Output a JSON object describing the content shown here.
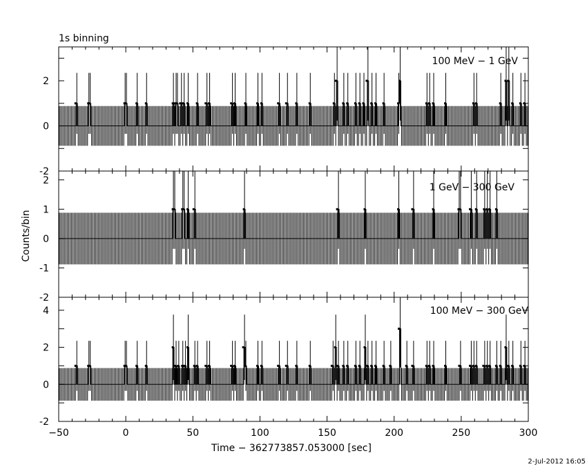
{
  "header": {
    "binning_label": "1s binning",
    "xlabel": "Time − 362773857.053000 [sec]",
    "ylabel": "Counts/bin",
    "date_stamp": "2-Jul-2012 16:05"
  },
  "chart_data": [
    {
      "type": "bar",
      "title": "100 MeV − 1 GeV",
      "xlim": [
        -50,
        300
      ],
      "ylim": [
        -2,
        3.5
      ],
      "yticks": [
        0,
        2
      ],
      "baseline_counts": 0,
      "baseline_error": 0.88,
      "events": [
        {
          "t": -37.5,
          "count": 1
        },
        {
          "t": -28,
          "count": 1
        },
        {
          "t": -27.5,
          "count": 1
        },
        {
          "t": -1,
          "count": 1
        },
        {
          "t": -0.5,
          "count": 1
        },
        {
          "t": 8,
          "count": 1
        },
        {
          "t": 15,
          "count": 1
        },
        {
          "t": 35,
          "count": 1
        },
        {
          "t": 36.5,
          "count": 1
        },
        {
          "t": 38,
          "count": 1
        },
        {
          "t": 40.5,
          "count": 1
        },
        {
          "t": 42.5,
          "count": 1
        },
        {
          "t": 46,
          "count": 1
        },
        {
          "t": 53,
          "count": 1
        },
        {
          "t": 59.5,
          "count": 1
        },
        {
          "t": 62,
          "count": 1
        },
        {
          "t": 78.5,
          "count": 1
        },
        {
          "t": 81,
          "count": 1
        },
        {
          "t": 89,
          "count": 1
        },
        {
          "t": 98,
          "count": 1
        },
        {
          "t": 101,
          "count": 1
        },
        {
          "t": 113.5,
          "count": 1
        },
        {
          "t": 119.5,
          "count": 1
        },
        {
          "t": 127,
          "count": 1
        },
        {
          "t": 137,
          "count": 1
        },
        {
          "t": 155,
          "count": 1
        },
        {
          "t": 156.5,
          "count": 2
        },
        {
          "t": 162,
          "count": 1
        },
        {
          "t": 165,
          "count": 1
        },
        {
          "t": 171,
          "count": 1
        },
        {
          "t": 174,
          "count": 1
        },
        {
          "t": 177,
          "count": 1
        },
        {
          "t": 179.5,
          "count": 2
        },
        {
          "t": 183,
          "count": 1
        },
        {
          "t": 186,
          "count": 1
        },
        {
          "t": 192,
          "count": 1
        },
        {
          "t": 203,
          "count": 1
        },
        {
          "t": 204,
          "count": 2
        },
        {
          "t": 224,
          "count": 1
        },
        {
          "t": 226,
          "count": 1
        },
        {
          "t": 229,
          "count": 1
        },
        {
          "t": 238,
          "count": 1
        },
        {
          "t": 259,
          "count": 1
        },
        {
          "t": 261,
          "count": 1
        },
        {
          "t": 279,
          "count": 1
        },
        {
          "t": 283,
          "count": 2
        },
        {
          "t": 285,
          "count": 2
        },
        {
          "t": 288,
          "count": 1
        },
        {
          "t": 294,
          "count": 1
        },
        {
          "t": 297,
          "count": 1
        }
      ]
    },
    {
      "type": "bar",
      "title": "1 GeV − 300 GeV",
      "xlim": [
        -50,
        300
      ],
      "ylim": [
        -2,
        2.3
      ],
      "yticks": [
        -1,
        0,
        1,
        2
      ],
      "baseline_counts": 0,
      "baseline_error": 0.88,
      "events": [
        {
          "t": 35,
          "count": 1
        },
        {
          "t": 36,
          "count": 1
        },
        {
          "t": 42,
          "count": 1
        },
        {
          "t": 43,
          "count": 1
        },
        {
          "t": 46,
          "count": 1
        },
        {
          "t": 50.5,
          "count": 1
        },
        {
          "t": 88,
          "count": 1
        },
        {
          "t": 157.5,
          "count": 1
        },
        {
          "t": 178,
          "count": 1
        },
        {
          "t": 203,
          "count": 1
        },
        {
          "t": 213.5,
          "count": 1
        },
        {
          "t": 229,
          "count": 1
        },
        {
          "t": 248,
          "count": 1
        },
        {
          "t": 249,
          "count": 1
        },
        {
          "t": 256.5,
          "count": 1
        },
        {
          "t": 261,
          "count": 1
        },
        {
          "t": 267,
          "count": 1
        },
        {
          "t": 269,
          "count": 1
        },
        {
          "t": 271,
          "count": 1
        },
        {
          "t": 276,
          "count": 1
        }
      ]
    },
    {
      "type": "bar",
      "title": "100 MeV − 300 GeV",
      "xlim": [
        -50,
        300
      ],
      "ylim": [
        -2,
        4.7
      ],
      "yticks": [
        0,
        2,
        4
      ],
      "baseline_counts": 0,
      "baseline_error": 0.88,
      "events": [
        {
          "t": -37.5,
          "count": 1
        },
        {
          "t": -28,
          "count": 1
        },
        {
          "t": -27,
          "count": 1
        },
        {
          "t": -1,
          "count": 1
        },
        {
          "t": 0,
          "count": 1
        },
        {
          "t": 8,
          "count": 1
        },
        {
          "t": 15,
          "count": 1
        },
        {
          "t": 35,
          "count": 2
        },
        {
          "t": 36.5,
          "count": 1
        },
        {
          "t": 39,
          "count": 1
        },
        {
          "t": 42,
          "count": 1
        },
        {
          "t": 43.5,
          "count": 1
        },
        {
          "t": 46,
          "count": 2
        },
        {
          "t": 51,
          "count": 1
        },
        {
          "t": 53,
          "count": 1
        },
        {
          "t": 59.5,
          "count": 1
        },
        {
          "t": 62,
          "count": 1
        },
        {
          "t": 78.5,
          "count": 1
        },
        {
          "t": 81,
          "count": 1
        },
        {
          "t": 87.5,
          "count": 2
        },
        {
          "t": 89,
          "count": 1
        },
        {
          "t": 98,
          "count": 1
        },
        {
          "t": 101,
          "count": 1
        },
        {
          "t": 113.5,
          "count": 1
        },
        {
          "t": 119.5,
          "count": 1
        },
        {
          "t": 127,
          "count": 1
        },
        {
          "t": 137,
          "count": 1
        },
        {
          "t": 153.5,
          "count": 1
        },
        {
          "t": 156,
          "count": 2
        },
        {
          "t": 157.5,
          "count": 1
        },
        {
          "t": 162,
          "count": 1
        },
        {
          "t": 165,
          "count": 1
        },
        {
          "t": 171,
          "count": 1
        },
        {
          "t": 174,
          "count": 1
        },
        {
          "t": 178,
          "count": 2
        },
        {
          "t": 180,
          "count": 1
        },
        {
          "t": 183,
          "count": 1
        },
        {
          "t": 186,
          "count": 1
        },
        {
          "t": 192,
          "count": 1
        },
        {
          "t": 197,
          "count": 1
        },
        {
          "t": 203.5,
          "count": 3
        },
        {
          "t": 209,
          "count": 1
        },
        {
          "t": 213.5,
          "count": 1
        },
        {
          "t": 224,
          "count": 1
        },
        {
          "t": 226,
          "count": 1
        },
        {
          "t": 229,
          "count": 1
        },
        {
          "t": 238,
          "count": 1
        },
        {
          "t": 248.5,
          "count": 1
        },
        {
          "t": 256.5,
          "count": 1
        },
        {
          "t": 259,
          "count": 1
        },
        {
          "t": 261,
          "count": 1
        },
        {
          "t": 266.5,
          "count": 1
        },
        {
          "t": 269,
          "count": 1
        },
        {
          "t": 271,
          "count": 1
        },
        {
          "t": 276,
          "count": 1
        },
        {
          "t": 279,
          "count": 1
        },
        {
          "t": 283,
          "count": 2
        },
        {
          "t": 285,
          "count": 1
        },
        {
          "t": 288,
          "count": 1
        },
        {
          "t": 294,
          "count": 1
        },
        {
          "t": 297,
          "count": 1
        }
      ],
      "xticks": [
        -50,
        0,
        50,
        100,
        150,
        200,
        250,
        300
      ]
    }
  ]
}
